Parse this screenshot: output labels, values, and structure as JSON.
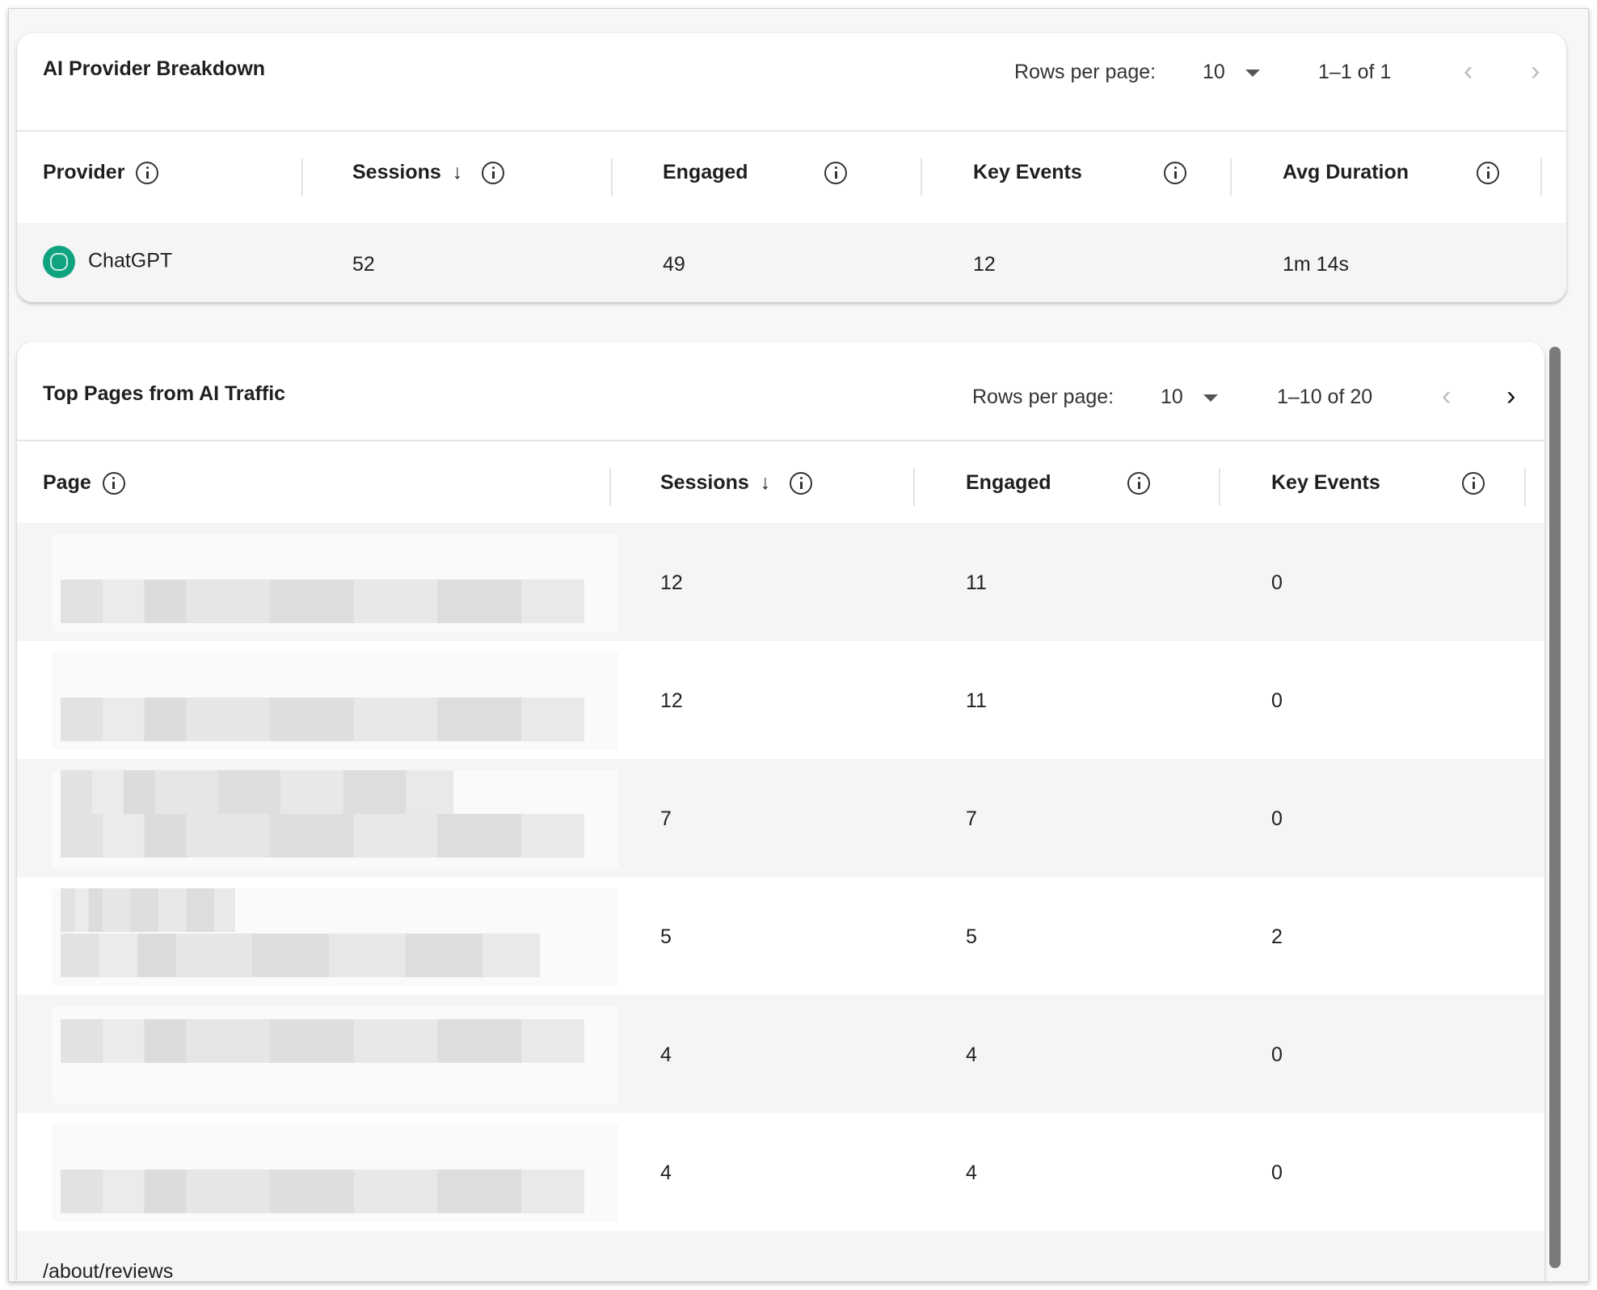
{
  "provider_card": {
    "title": "AI Provider Breakdown",
    "rows_per_page_label": "Rows per page:",
    "rows_per_page": "10",
    "range": "1–1 of 1",
    "columns": [
      "Provider",
      "Sessions",
      "Engaged",
      "Key Events",
      "Avg Duration"
    ],
    "rows": [
      {
        "provider": "ChatGPT",
        "icon": "openai-logo-icon",
        "sessions": "52",
        "engaged": "49",
        "key_events": "12",
        "avg_duration": "1m 14s"
      }
    ]
  },
  "pages_card": {
    "title": "Top Pages from AI Traffic",
    "rows_per_page_label": "Rows per page:",
    "rows_per_page": "10",
    "range": "1–10 of 20",
    "columns": [
      "Page",
      "Sessions",
      "Engaged",
      "Key Events"
    ],
    "rows": [
      {
        "page": "",
        "sessions": "12",
        "engaged": "11",
        "key_events": "0"
      },
      {
        "page": "",
        "sessions": "12",
        "engaged": "11",
        "key_events": "0"
      },
      {
        "page": "",
        "sessions": "7",
        "engaged": "7",
        "key_events": "0"
      },
      {
        "page": "",
        "sessions": "5",
        "engaged": "5",
        "key_events": "2"
      },
      {
        "page": "",
        "sessions": "4",
        "engaged": "4",
        "key_events": "0"
      },
      {
        "page": "",
        "sessions": "4",
        "engaged": "4",
        "key_events": "0"
      },
      {
        "page": "/about/reviews",
        "sessions": "",
        "engaged": "",
        "key_events": ""
      }
    ]
  },
  "colors": {
    "row_alt": "#f5f5f5",
    "chatgpt": "#10a37f"
  }
}
